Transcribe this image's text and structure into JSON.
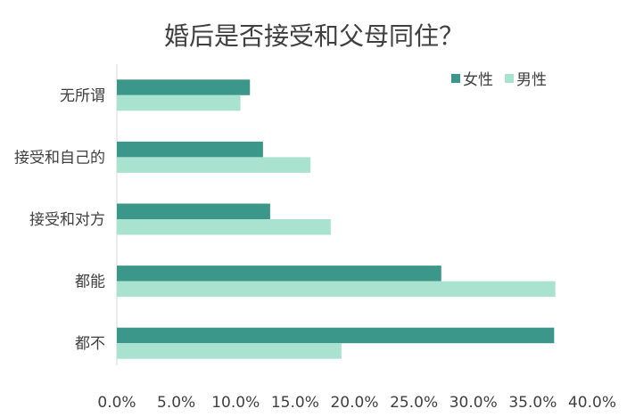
{
  "chart_data": {
    "type": "bar",
    "orientation": "horizontal",
    "title": "婚后是否接受和父母同住？",
    "categories": [
      "无所谓",
      "接受和自己的",
      "接受和对方",
      "都能",
      "都不"
    ],
    "series": [
      {
        "name": "女性",
        "color": "#3a978a",
        "values": [
          11.2,
          12.3,
          12.9,
          27.3,
          36.8
        ]
      },
      {
        "name": "男性",
        "color": "#a9e3cf",
        "values": [
          10.4,
          16.3,
          18.0,
          36.9,
          18.9
        ]
      }
    ],
    "xlim": [
      0,
      40
    ],
    "x_ticks": [
      "0.0%",
      "5.0%",
      "10.0%",
      "15.0%",
      "20.0%",
      "25.0%",
      "30.0%",
      "35.0%",
      "40.0%"
    ],
    "grid": false,
    "legend_position": "top-right"
  }
}
